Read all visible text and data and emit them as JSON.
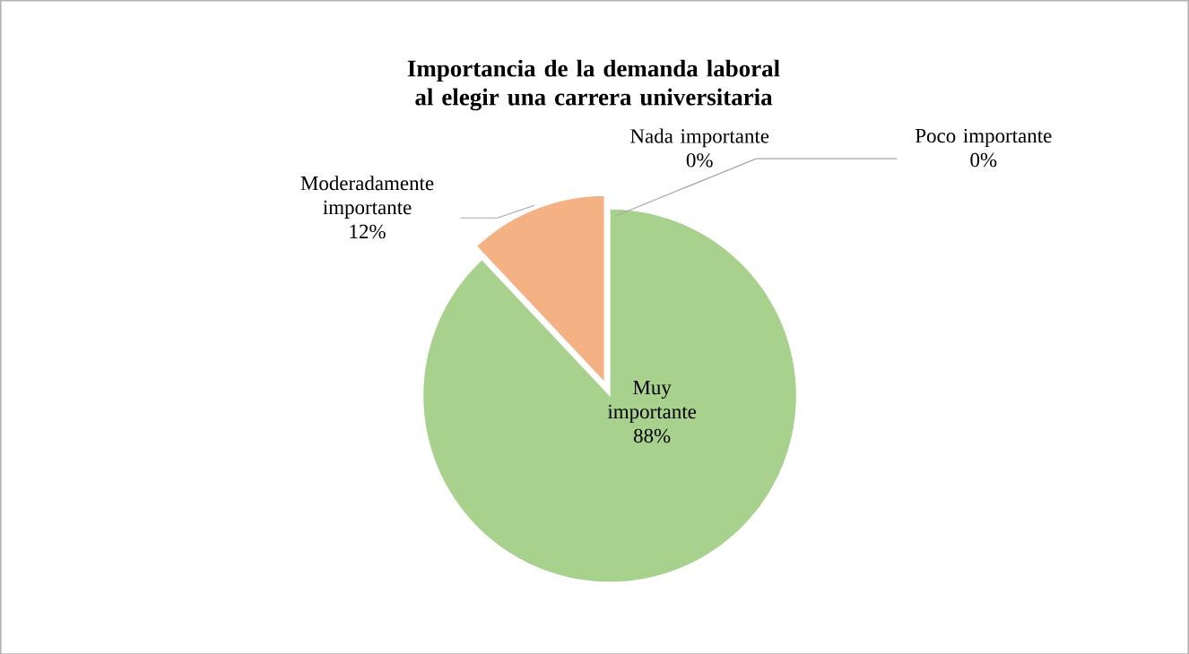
{
  "chart_data": {
    "type": "pie",
    "title": "Importancia de la demanda laboral al elegir una carrera universitaria",
    "categories": [
      "Muy importante",
      "Moderadamente importante",
      "Nada importante",
      "Poco importante"
    ],
    "values": [
      88,
      12,
      0,
      0
    ],
    "colors": [
      "#a9d18e",
      "#f4b183",
      "#5b9bd5",
      "#ffc000"
    ],
    "value_labels": [
      "88%",
      "12%",
      "0%",
      "0%"
    ]
  }
}
